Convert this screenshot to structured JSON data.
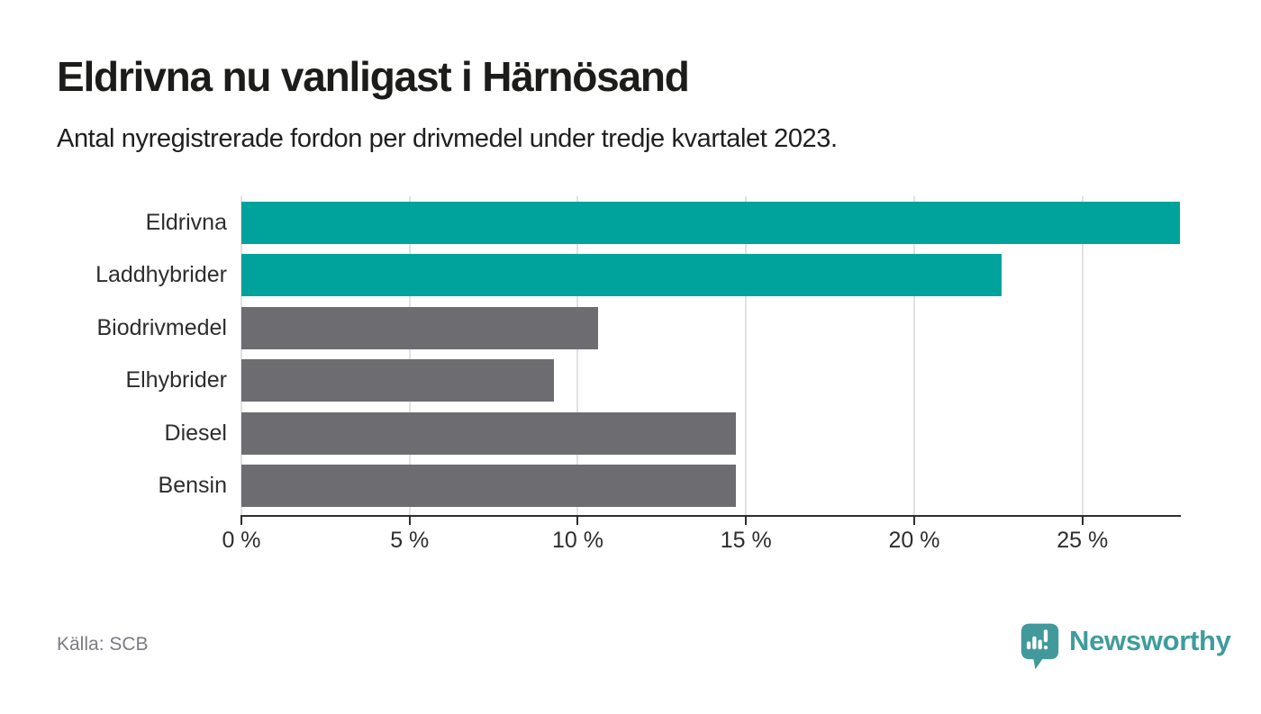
{
  "header": {
    "title": "Eldrivna nu vanligast i Härnösand",
    "subtitle": "Antal nyregistrerade fordon per drivmedel under tredje kvartalet 2023."
  },
  "footer": {
    "source": "Källa: SCB",
    "brand_name": "Newsworthy"
  },
  "colors": {
    "highlight": "#00a39b",
    "muted": "#6d6d71",
    "gridline": "#e1e1e1",
    "axis": "#2e2e2e",
    "label_text": "#2d2d2d",
    "source_text": "#7b7b83",
    "brand_teal": "#3f9c9d"
  },
  "chart_data": {
    "type": "bar",
    "orientation": "horizontal",
    "title": "Eldrivna nu vanligast i Härnösand",
    "subtitle": "Antal nyregistrerade fordon per drivmedel under tredje kvartalet 2023.",
    "unit": "%",
    "categories": [
      "Eldrivna",
      "Laddhybrider",
      "Biodrivmedel",
      "Elhybrider",
      "Diesel",
      "Bensin"
    ],
    "values": [
      27.9,
      22.6,
      10.6,
      9.3,
      14.7,
      14.7
    ],
    "bar_colors": [
      "#00a39b",
      "#00a39b",
      "#6d6d71",
      "#6d6d71",
      "#6d6d71",
      "#6d6d71"
    ],
    "highlighted_categories": [
      "Eldrivna",
      "Laddhybrider"
    ],
    "x_ticks": [
      0,
      5,
      10,
      15,
      20,
      25
    ],
    "x_tick_labels": [
      "0 %",
      "5 %",
      "10 %",
      "15 %",
      "20 %",
      "25 %"
    ],
    "xlim": [
      0,
      27.9
    ],
    "grid": true,
    "legend": "none"
  }
}
